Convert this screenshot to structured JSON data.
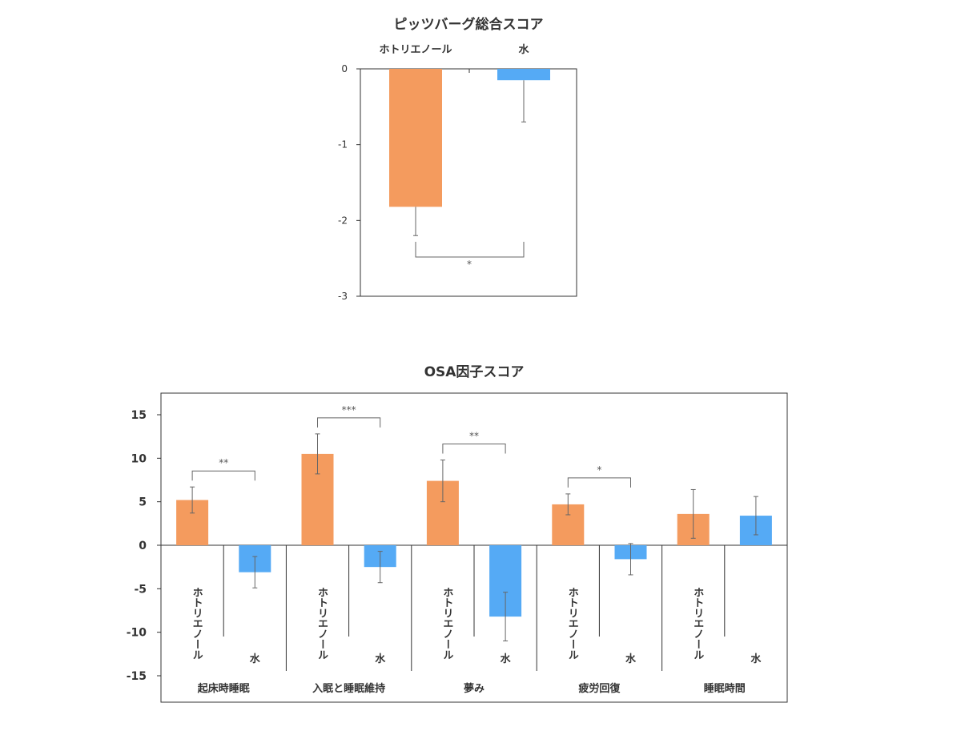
{
  "colors": {
    "treatment": "#f49b5e",
    "control": "#55aaf5",
    "axis": "#333333",
    "errorbar": "#666666"
  },
  "chart_data": [
    {
      "type": "bar",
      "title": "ピッツバーグ総合スコア",
      "categories": [
        "ホトリエノール",
        "水"
      ],
      "values": [
        -1.82,
        -0.15
      ],
      "errors": [
        0.38,
        0.55
      ],
      "ylim": [
        -3,
        0
      ],
      "yticks": [
        "0",
        "-1",
        "-2",
        "-3"
      ],
      "significance": [
        {
          "between": [
            0,
            1
          ],
          "label": "*"
        }
      ],
      "grid": false
    },
    {
      "type": "bar",
      "title": "OSA因子スコア",
      "groups": [
        "起床時睡眠",
        "入眠と睡眠維持",
        "夢み",
        "疲労回復",
        "睡眠時間"
      ],
      "series": [
        {
          "name": "ホトリエノール",
          "values": [
            5.2,
            10.5,
            7.4,
            4.7,
            3.6
          ],
          "errors": [
            1.5,
            2.3,
            2.4,
            1.2,
            2.8
          ]
        },
        {
          "name": "水",
          "values": [
            -3.1,
            -2.5,
            -8.2,
            -1.6,
            3.4
          ],
          "errors": [
            1.8,
            1.8,
            2.8,
            1.8,
            2.2
          ]
        }
      ],
      "ylim": [
        -15,
        17.5
      ],
      "yticks": [
        "15",
        "10",
        "5",
        "0",
        "-5",
        "-10",
        "-15"
      ],
      "significance": [
        {
          "group": 0,
          "label": "**"
        },
        {
          "group": 1,
          "label": "***"
        },
        {
          "group": 2,
          "label": "**"
        },
        {
          "group": 3,
          "label": "*"
        }
      ],
      "grid": false
    }
  ]
}
